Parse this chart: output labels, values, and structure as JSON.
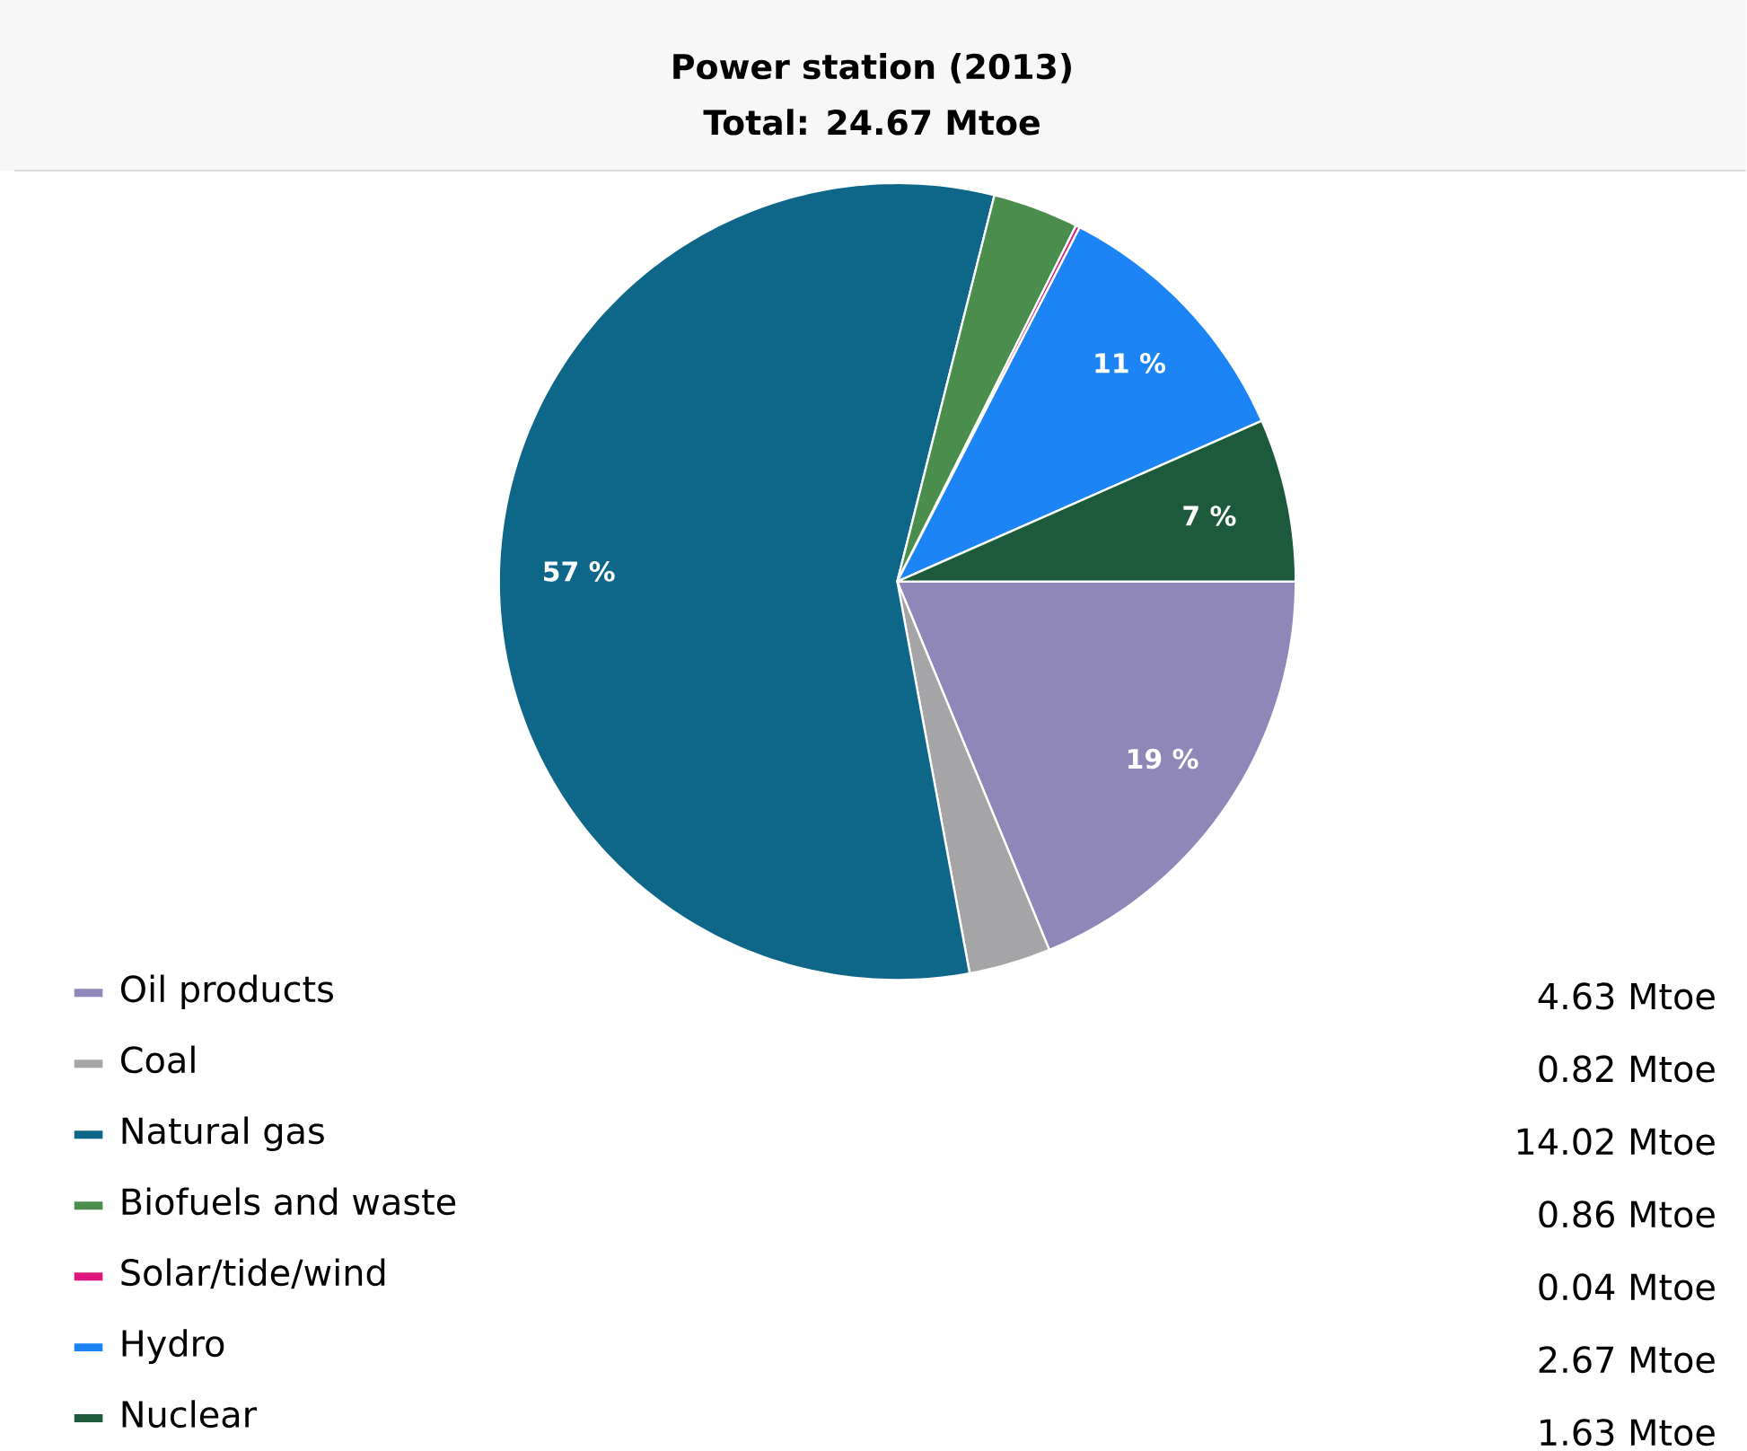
{
  "chart_data": {
    "type": "pie",
    "title": "Power station (2013)",
    "subtitle": "Total: 24.67 Mtoe",
    "categories": [
      "Oil products",
      "Coal",
      "Natural gas",
      "Biofuels and waste",
      "Solar/tide/wind",
      "Hydro",
      "Nuclear"
    ],
    "values": [
      4.63,
      0.82,
      14.02,
      0.86,
      0.04,
      2.67,
      1.63
    ],
    "colors": [
      "#8e87b8",
      "#a5a5a8",
      "#0e6689",
      "#4a8d4c",
      "#e0167f",
      "#1c84f4",
      "#1d5a3b"
    ],
    "value_labels": [
      "4.63 Mtoe",
      "0.82 Mtoe",
      "14.02 Mtoe",
      "0.86 Mtoe",
      "0.04 Mtoe",
      "2.67 Mtoe",
      "1.63 Mtoe"
    ],
    "annotations": [
      {
        "text": "19 %",
        "x": "Oil products"
      },
      {
        "text": "57 %",
        "x": "Natural gas"
      },
      {
        "text": "11 %",
        "x": "Hydro"
      },
      {
        "text": "7 %",
        "x": "Nuclear"
      }
    ],
    "legend": "bottom"
  }
}
